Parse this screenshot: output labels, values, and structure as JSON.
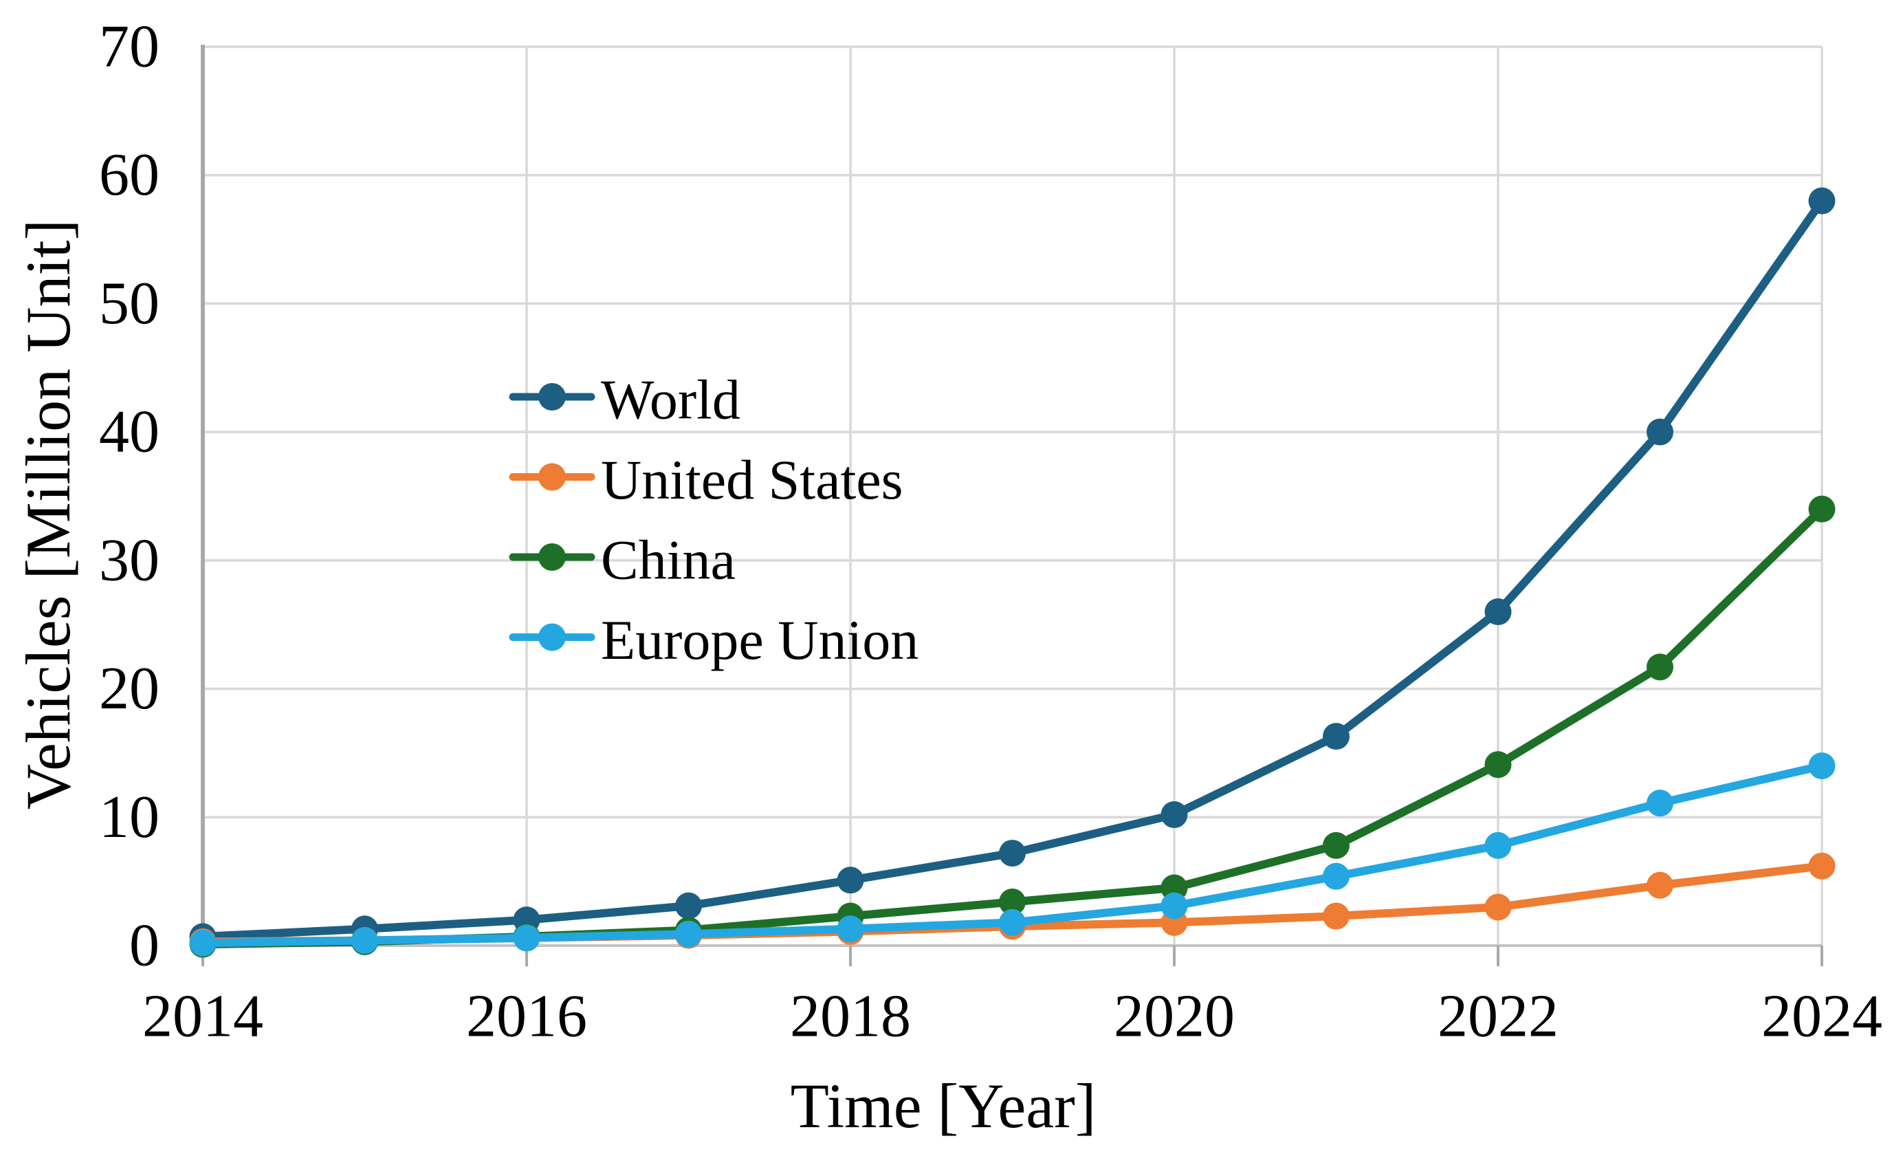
{
  "figure": {
    "background": "#ffffff",
    "text_color": "#000000",
    "gridline_color": "#d9d9d9",
    "axis_line_color": "#a9a9a9",
    "baseline_color": "#c2c2c2"
  },
  "chart_data": {
    "type": "line",
    "title": "",
    "xlabel": "Time [Year]",
    "ylabel": "Vehicles [Million Unit]",
    "x": [
      2014,
      2015,
      2016,
      2017,
      2018,
      2019,
      2020,
      2021,
      2022,
      2023,
      2024
    ],
    "xlim": [
      2014,
      2024
    ],
    "ylim": [
      0,
      70
    ],
    "xtick_labels": [
      "2014",
      "2016",
      "2018",
      "2020",
      "2022",
      "2024"
    ],
    "xtick_values": [
      2014,
      2016,
      2018,
      2020,
      2022,
      2024
    ],
    "ytick_labels": [
      "0",
      "10",
      "20",
      "30",
      "40",
      "50",
      "60",
      "70"
    ],
    "ytick_values": [
      0,
      10,
      20,
      30,
      40,
      50,
      60,
      70
    ],
    "grid": true,
    "legend_position": "inside-upper-left",
    "marker": "circle",
    "series": [
      {
        "name": "World",
        "color": "#1d5f83",
        "values": [
          0.7,
          1.3,
          2.0,
          3.1,
          5.1,
          7.2,
          10.2,
          16.3,
          26.0,
          40.0,
          58.0
        ]
      },
      {
        "name": "United States",
        "color": "#ee7c33",
        "values": [
          0.3,
          0.4,
          0.6,
          0.8,
          1.1,
          1.5,
          1.8,
          2.3,
          3.0,
          4.7,
          6.2
        ]
      },
      {
        "name": "China",
        "color": "#1e7028",
        "values": [
          0.1,
          0.3,
          0.7,
          1.2,
          2.3,
          3.4,
          4.5,
          7.8,
          14.1,
          21.7,
          34.0
        ]
      },
      {
        "name": "Europe Union",
        "color": "#24a7e0",
        "values": [
          0.2,
          0.4,
          0.6,
          0.9,
          1.3,
          1.8,
          3.1,
          5.4,
          7.8,
          11.1,
          14.0
        ]
      }
    ]
  }
}
